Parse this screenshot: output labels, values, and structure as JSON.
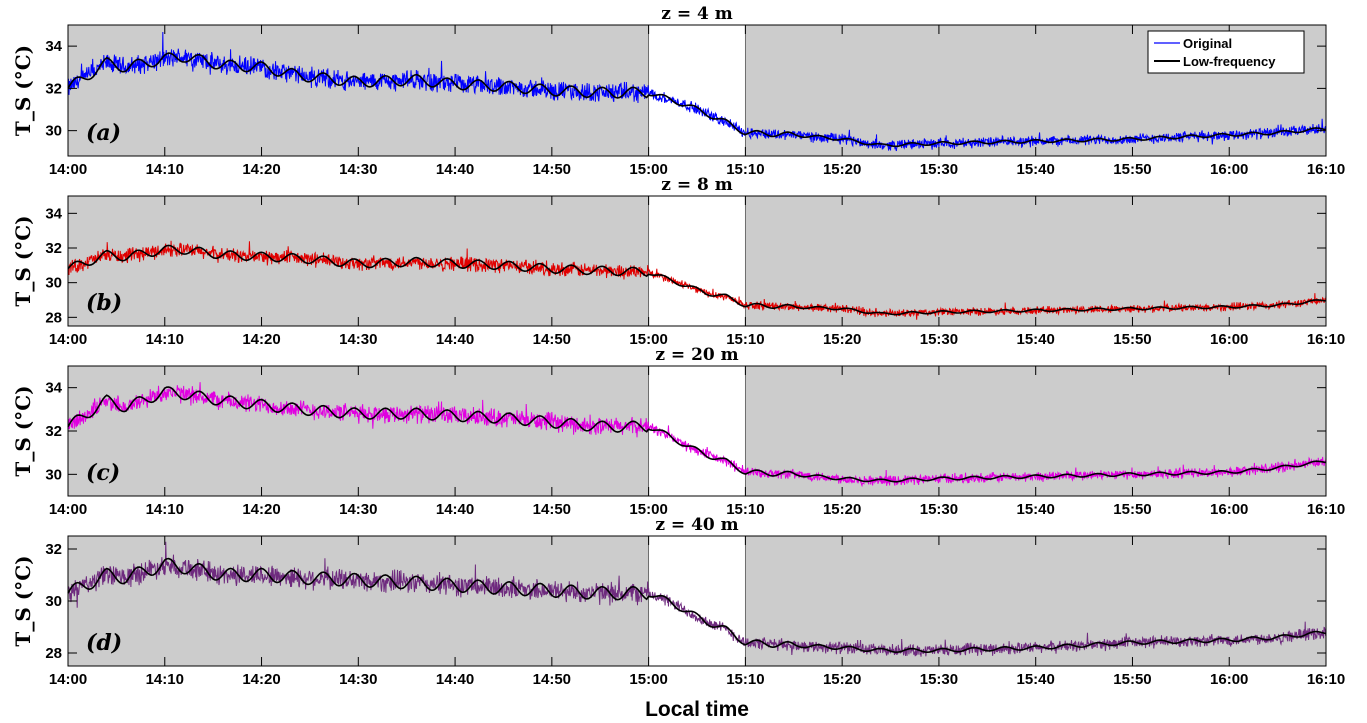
{
  "figure": {
    "xlabel": "Local time"
  },
  "legend": {
    "entries": [
      {
        "label": "Original",
        "color": "#0000ff"
      },
      {
        "label": "Low-frequency",
        "color": "#000000"
      }
    ],
    "placement": "top-right of panel (a)"
  },
  "chart_data": [
    {
      "type": "line",
      "panel": "(a)",
      "title": "z = 4 m",
      "ylabel": "T_S (°C)",
      "xlim": [
        "14:00",
        "16:10"
      ],
      "ylim": [
        28.8,
        35.0
      ],
      "yticks": [
        30,
        32,
        34
      ],
      "xticks": [
        "14:00",
        "14:10",
        "14:20",
        "14:30",
        "14:40",
        "14:50",
        "15:00",
        "15:10",
        "15:20",
        "15:30",
        "15:40",
        "15:50",
        "16:00",
        "16:10"
      ],
      "shaded_intervals": [
        [
          "14:00",
          "15:00"
        ],
        [
          "15:10",
          "16:10"
        ]
      ],
      "grid": false,
      "series": [
        {
          "name": "Original",
          "color": "#0000ff",
          "kind": "noisy",
          "noise_amplitude": 0.55
        },
        {
          "name": "Low-frequency",
          "color": "#000000",
          "kind": "smooth"
        }
      ],
      "x": [
        0,
        4,
        6,
        10,
        12,
        16,
        20,
        24,
        30,
        36,
        40,
        45,
        50,
        55,
        60,
        62,
        64,
        66,
        68,
        70,
        75,
        80,
        84,
        90,
        100,
        110,
        120,
        125,
        130
      ],
      "lowfreq": [
        32.0,
        33.2,
        33.0,
        33.4,
        33.5,
        33.1,
        33.0,
        32.6,
        32.3,
        32.4,
        32.2,
        32.1,
        31.9,
        31.8,
        31.8,
        31.5,
        31.2,
        30.8,
        30.4,
        29.9,
        29.8,
        29.6,
        29.3,
        29.4,
        29.5,
        29.6,
        29.8,
        29.9,
        30.1
      ],
      "lowfreq_color": "#000000",
      "raw_color": "#0000ff"
    },
    {
      "type": "line",
      "panel": "(b)",
      "title": "z = 8 m",
      "ylabel": "T_S (°C)",
      "xlim": [
        "14:00",
        "16:10"
      ],
      "ylim": [
        27.5,
        35.0
      ],
      "yticks": [
        28,
        30,
        32,
        34
      ],
      "xticks": [
        "14:00",
        "14:10",
        "14:20",
        "14:30",
        "14:40",
        "14:50",
        "15:00",
        "15:10",
        "15:20",
        "15:30",
        "15:40",
        "15:50",
        "16:00",
        "16:10"
      ],
      "shaded_intervals": [
        [
          "14:00",
          "15:00"
        ],
        [
          "15:10",
          "16:10"
        ]
      ],
      "grid": false,
      "series": [
        {
          "name": "Original",
          "color": "#e00000",
          "kind": "noisy",
          "noise_amplitude": 0.5
        },
        {
          "name": "Low-frequency",
          "color": "#000000",
          "kind": "smooth"
        }
      ],
      "x": [
        0,
        4,
        6,
        10,
        12,
        16,
        20,
        24,
        30,
        36,
        40,
        45,
        50,
        55,
        60,
        62,
        64,
        66,
        68,
        70,
        75,
        80,
        84,
        90,
        100,
        110,
        120,
        125,
        130
      ],
      "lowfreq": [
        30.8,
        31.6,
        31.5,
        31.9,
        31.9,
        31.6,
        31.5,
        31.4,
        31.1,
        31.2,
        31.1,
        31.0,
        30.8,
        30.7,
        30.6,
        30.2,
        29.8,
        29.4,
        29.2,
        28.7,
        28.6,
        28.5,
        28.2,
        28.3,
        28.4,
        28.5,
        28.6,
        28.7,
        29.0
      ],
      "lowfreq_color": "#000000",
      "raw_color": "#e00000"
    },
    {
      "type": "line",
      "panel": "(c)",
      "title": "z = 20 m",
      "ylabel": "T_S (°C)",
      "xlim": [
        "14:00",
        "16:10"
      ],
      "ylim": [
        29.0,
        35.0
      ],
      "yticks": [
        30,
        32,
        34
      ],
      "xticks": [
        "14:00",
        "14:10",
        "14:20",
        "14:30",
        "14:40",
        "14:50",
        "15:00",
        "15:10",
        "15:20",
        "15:30",
        "15:40",
        "15:50",
        "16:00",
        "16:10"
      ],
      "shaded_intervals": [
        [
          "14:00",
          "15:00"
        ],
        [
          "15:10",
          "16:10"
        ]
      ],
      "grid": false,
      "series": [
        {
          "name": "Original",
          "color": "#e000e0",
          "kind": "noisy",
          "noise_amplitude": 0.5
        },
        {
          "name": "Low-frequency",
          "color": "#000000",
          "kind": "smooth"
        }
      ],
      "x": [
        0,
        4,
        6,
        10,
        12,
        16,
        20,
        24,
        30,
        36,
        40,
        45,
        50,
        55,
        60,
        62,
        64,
        66,
        68,
        70,
        75,
        80,
        84,
        90,
        100,
        110,
        120,
        125,
        130
      ],
      "lowfreq": [
        32.2,
        33.4,
        33.1,
        33.8,
        33.7,
        33.4,
        33.2,
        33.0,
        32.8,
        32.8,
        32.7,
        32.6,
        32.4,
        32.2,
        32.2,
        31.8,
        31.3,
        30.9,
        30.6,
        30.1,
        30.0,
        29.8,
        29.7,
        29.8,
        29.9,
        30.0,
        30.1,
        30.3,
        30.6
      ],
      "lowfreq_color": "#000000",
      "raw_color": "#e000e0"
    },
    {
      "type": "line",
      "panel": "(d)",
      "title": "z = 40 m",
      "ylabel": "T_S (°C)",
      "xlim": [
        "14:00",
        "16:10"
      ],
      "ylim": [
        27.5,
        32.5
      ],
      "yticks": [
        28,
        30,
        32
      ],
      "xticks": [
        "14:00",
        "14:10",
        "14:20",
        "14:30",
        "14:40",
        "14:50",
        "15:00",
        "15:10",
        "15:20",
        "15:30",
        "15:40",
        "15:50",
        "16:00",
        "16:10"
      ],
      "shaded_intervals": [
        [
          "14:00",
          "15:00"
        ],
        [
          "15:10",
          "16:10"
        ]
      ],
      "grid": false,
      "series": [
        {
          "name": "Original",
          "color": "#6e2a7e",
          "kind": "noisy",
          "noise_amplitude": 0.5
        },
        {
          "name": "Low-frequency",
          "color": "#000000",
          "kind": "smooth"
        }
      ],
      "x": [
        0,
        4,
        6,
        10,
        12,
        16,
        20,
        24,
        30,
        36,
        40,
        45,
        50,
        55,
        60,
        62,
        64,
        66,
        68,
        70,
        75,
        80,
        84,
        90,
        100,
        110,
        120,
        125,
        130
      ],
      "lowfreq": [
        30.3,
        31.0,
        30.9,
        31.4,
        31.3,
        31.0,
        31.0,
        30.9,
        30.8,
        30.7,
        30.6,
        30.5,
        30.4,
        30.3,
        30.3,
        30.0,
        29.6,
        29.2,
        28.9,
        28.4,
        28.3,
        28.2,
        28.1,
        28.1,
        28.2,
        28.4,
        28.5,
        28.6,
        28.8
      ],
      "lowfreq_color": "#000000",
      "raw_color": "#6e2a7e"
    }
  ]
}
